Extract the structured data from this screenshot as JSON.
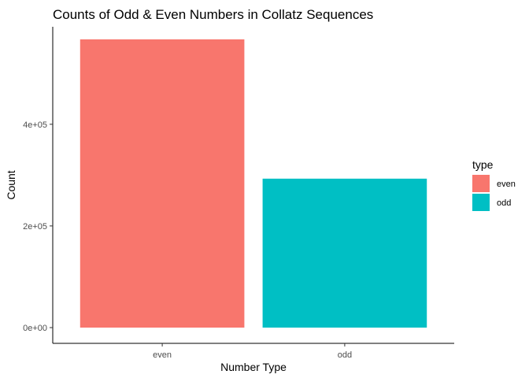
{
  "chart_data": {
    "type": "bar",
    "title": "Counts of Odd & Even Numbers in Collatz Sequences",
    "xlabel": "Number Type",
    "ylabel": "Count",
    "categories": [
      "even",
      "odd"
    ],
    "values": [
      567000,
      293000
    ],
    "ylim": [
      0,
      567000
    ],
    "yticks": [
      0,
      200000,
      400000
    ],
    "ytick_labels": [
      "0e+00",
      "2e+05",
      "4e+05"
    ],
    "grid": false,
    "legend": {
      "title": "type",
      "placement": "right",
      "entries": [
        {
          "label": "even",
          "color": "#F8766D"
        },
        {
          "label": "odd",
          "color": "#00BFC4"
        }
      ]
    },
    "colors": [
      "#F8766D",
      "#00BFC4"
    ]
  }
}
